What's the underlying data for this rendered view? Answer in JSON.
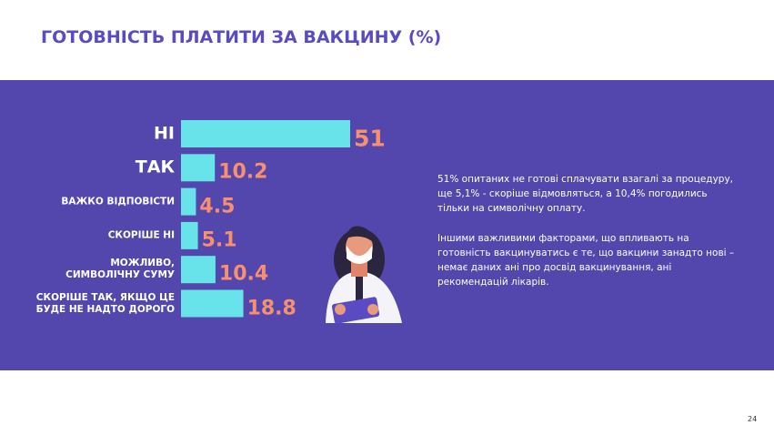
{
  "chart_data": {
    "type": "bar",
    "orientation": "horizontal",
    "title": "ГОТОВНІСТЬ ПЛАТИТИ ЗА ВАКЦИНУ (%)",
    "categories": [
      "НІ",
      "ТАК",
      "ВАЖКО ВІДПОВІСТИ",
      "СКОРІШЕ НІ",
      "МОЖЛИВО,\nСИМВОЛІЧНУ СУМУ",
      "СКОРІШЕ ТАК, ЯКЩО ЦЕ\nБУДЕ НЕ НАДТО ДОРОГО"
    ],
    "values": [
      51,
      10.2,
      4.5,
      5.1,
      10.4,
      18.8
    ],
    "color": "#67e3e9",
    "label_color": "#f7906f"
  },
  "text": {
    "paragraphs": [
      "51% опитаних не готові сплачувати взагалі за процедуру, ще 5,1% - скоріше відмовляться, а 10,4% погодились тільки на символічну оплату.",
      "Іншими важливими факторами, що впливають на готовність вакцинуватись є те, що вакцини занадто нові – немає даних ані про досвід вакцинування, ані рекомендацій лікарів."
    ],
    "page_number": "24"
  }
}
